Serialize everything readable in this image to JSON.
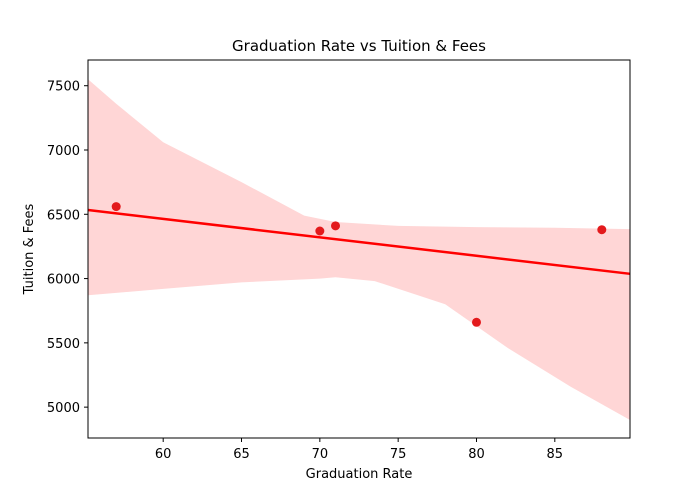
{
  "chart_data": {
    "type": "scatter",
    "title": "Graduation Rate vs Tuition & Fees",
    "xlabel": "Graduation Rate",
    "ylabel": "Tuition & Fees",
    "xlim": [
      55.2,
      89.8
    ],
    "ylim": [
      4760,
      7700
    ],
    "xticks": [
      60,
      65,
      70,
      75,
      80,
      85
    ],
    "yticks": [
      5000,
      5500,
      6000,
      6500,
      7000,
      7500
    ],
    "grid": false,
    "point_color": "#e31a1c",
    "line_color": "#ff0000",
    "band_color": "#ffd6d6",
    "points": [
      {
        "x": 57,
        "y": 6560
      },
      {
        "x": 70,
        "y": 6370
      },
      {
        "x": 71,
        "y": 6410
      },
      {
        "x": 80,
        "y": 5660
      },
      {
        "x": 88,
        "y": 6380
      }
    ],
    "regression": {
      "x": [
        55.2,
        89.8
      ],
      "y": [
        6533,
        6037
      ]
    },
    "confidence_band": {
      "upper": [
        {
          "x": 55.2,
          "y": 7550
        },
        {
          "x": 57,
          "y": 7360
        },
        {
          "x": 60,
          "y": 7060
        },
        {
          "x": 65,
          "y": 6750
        },
        {
          "x": 69,
          "y": 6490
        },
        {
          "x": 71,
          "y": 6440
        },
        {
          "x": 75,
          "y": 6410
        },
        {
          "x": 80,
          "y": 6400
        },
        {
          "x": 85,
          "y": 6395
        },
        {
          "x": 89.8,
          "y": 6385
        }
      ],
      "lower": [
        {
          "x": 55.2,
          "y": 5870
        },
        {
          "x": 60,
          "y": 5920
        },
        {
          "x": 65,
          "y": 5970
        },
        {
          "x": 70,
          "y": 6000
        },
        {
          "x": 71,
          "y": 6010
        },
        {
          "x": 73.5,
          "y": 5980
        },
        {
          "x": 78,
          "y": 5800
        },
        {
          "x": 82,
          "y": 5460
        },
        {
          "x": 86,
          "y": 5160
        },
        {
          "x": 89.8,
          "y": 4900
        }
      ]
    }
  }
}
